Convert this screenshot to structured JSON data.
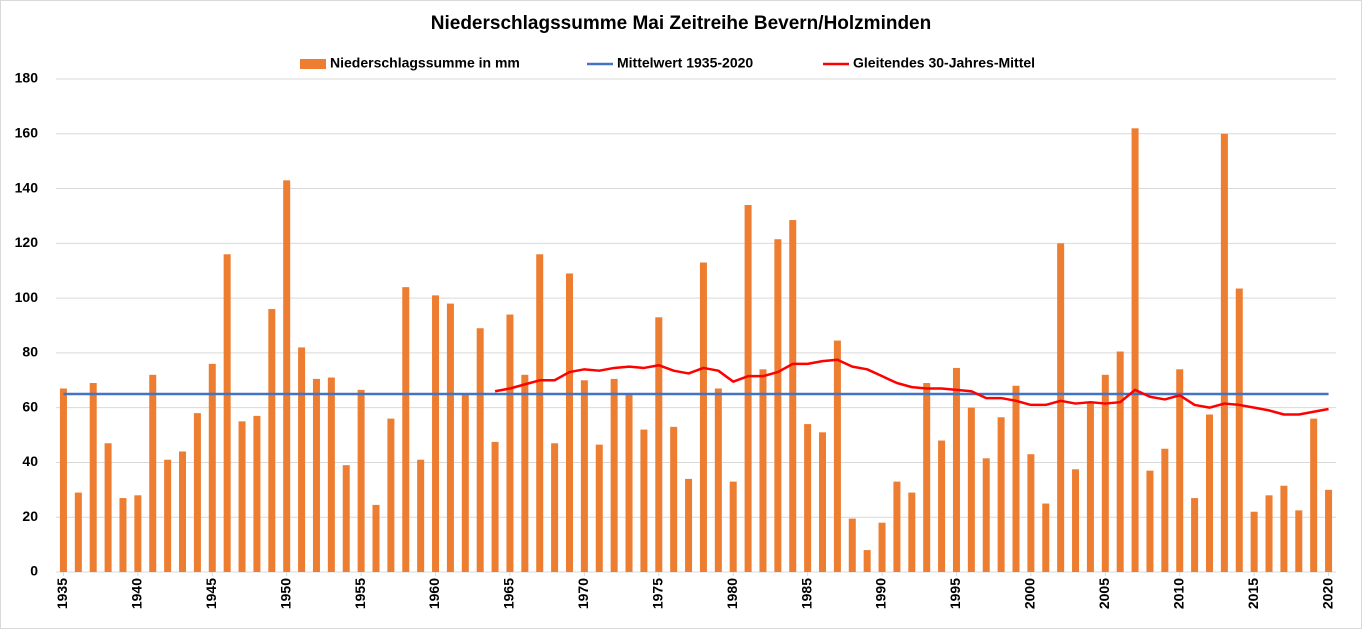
{
  "chart_data": {
    "type": "bar",
    "title": "Niederschlagssumme Mai Zeitreihe Bevern/Holzminden",
    "x": [
      1935,
      1936,
      1937,
      1938,
      1939,
      1940,
      1941,
      1942,
      1943,
      1944,
      1945,
      1946,
      1947,
      1948,
      1949,
      1950,
      1951,
      1952,
      1953,
      1954,
      1955,
      1956,
      1957,
      1958,
      1959,
      1960,
      1961,
      1962,
      1963,
      1964,
      1965,
      1966,
      1967,
      1968,
      1969,
      1970,
      1971,
      1972,
      1973,
      1974,
      1975,
      1976,
      1977,
      1978,
      1979,
      1980,
      1981,
      1982,
      1983,
      1984,
      1985,
      1986,
      1987,
      1988,
      1989,
      1990,
      1991,
      1992,
      1993,
      1994,
      1995,
      1996,
      1997,
      1998,
      1999,
      2000,
      2001,
      2002,
      2003,
      2004,
      2005,
      2006,
      2007,
      2008,
      2009,
      2010,
      2011,
      2012,
      2013,
      2014,
      2015,
      2016,
      2017,
      2018,
      2019,
      2020
    ],
    "series": [
      {
        "name": "Niederschlagssumme in mm",
        "type": "bar",
        "color": "#ed7d31",
        "values": [
          67,
          29,
          69,
          47,
          27,
          28,
          72,
          41,
          44,
          58,
          76,
          116,
          55,
          57,
          96,
          143,
          82,
          70.5,
          71,
          39,
          66.5,
          24.5,
          56,
          104,
          41,
          101,
          98,
          65,
          89,
          47.5,
          94,
          72,
          116,
          47,
          109,
          70,
          46.5,
          70.5,
          65,
          52,
          93,
          53,
          34,
          113,
          67,
          33,
          134,
          74,
          121.5,
          128.5,
          54,
          51,
          84.5,
          19.5,
          8,
          18,
          33,
          29,
          69,
          48,
          74.5,
          60,
          41.5,
          56.5,
          68,
          43,
          25,
          120,
          37.5,
          62,
          72,
          80.5,
          162,
          37,
          45,
          74,
          27,
          57.5,
          160,
          103.5,
          22,
          28,
          31.5,
          22.5,
          56,
          30
        ]
      },
      {
        "name": "Mittelwert 1935-2020",
        "type": "line",
        "color": "#4472c4",
        "values": [
          65,
          65,
          65,
          65,
          65,
          65,
          65,
          65,
          65,
          65,
          65,
          65,
          65,
          65,
          65,
          65,
          65,
          65,
          65,
          65,
          65,
          65,
          65,
          65,
          65,
          65,
          65,
          65,
          65,
          65,
          65,
          65,
          65,
          65,
          65,
          65,
          65,
          65,
          65,
          65,
          65,
          65,
          65,
          65,
          65,
          65,
          65,
          65,
          65,
          65,
          65,
          65,
          65,
          65,
          65,
          65,
          65,
          65,
          65,
          65,
          65,
          65,
          65,
          65,
          65,
          65,
          65,
          65,
          65,
          65,
          65,
          65,
          65,
          65,
          65,
          65,
          65,
          65,
          65,
          65,
          65,
          65,
          65,
          65,
          65,
          65
        ]
      },
      {
        "name": "Gleitendes 30-Jahres-Mittel",
        "type": "line",
        "color": "#ff0000",
        "values": [
          null,
          null,
          null,
          null,
          null,
          null,
          null,
          null,
          null,
          null,
          null,
          null,
          null,
          null,
          null,
          null,
          null,
          null,
          null,
          null,
          null,
          null,
          null,
          null,
          null,
          null,
          null,
          null,
          null,
          66,
          67,
          68.5,
          70,
          70,
          73,
          74,
          73.5,
          74.5,
          75,
          74.5,
          75.5,
          73.5,
          72.5,
          74.5,
          73.5,
          69.5,
          71.5,
          71.5,
          73,
          76,
          76,
          77,
          77.5,
          75,
          74,
          71.5,
          69,
          67.5,
          67,
          67,
          66.5,
          66,
          63.5,
          63.5,
          62.5,
          61,
          61,
          62.5,
          61.5,
          62,
          61.5,
          62,
          66.5,
          64,
          63,
          64.5,
          61,
          60,
          61.5,
          61,
          60,
          59,
          57.5,
          57.5,
          58.5,
          59.5
        ]
      }
    ],
    "xlim": [
      1934.5,
      2020.5
    ],
    "xticks": [
      1935,
      1940,
      1945,
      1950,
      1955,
      1960,
      1965,
      1970,
      1975,
      1980,
      1985,
      1990,
      1995,
      2000,
      2005,
      2010,
      2015,
      2020
    ],
    "ylim": [
      0,
      180
    ],
    "yticks": [
      0,
      20,
      40,
      60,
      80,
      100,
      120,
      140,
      160,
      180
    ],
    "grid": true,
    "legend": "top"
  }
}
